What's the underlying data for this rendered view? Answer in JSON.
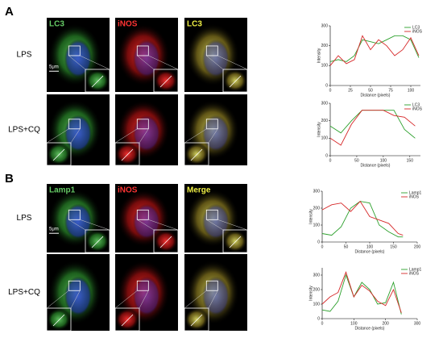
{
  "figure": {
    "panels": [
      {
        "letter": "A",
        "rows": [
          "LPS",
          "LPS+CQ"
        ],
        "channels": [
          "LC3",
          "iNOS",
          "LC3"
        ],
        "scale": "5μm"
      },
      {
        "letter": "B",
        "rows": [
          "LPS",
          "LPS+CQ"
        ],
        "channels": [
          "Lamp1",
          "iNOS",
          "Merge"
        ],
        "scale": "5μm"
      }
    ]
  },
  "chart_data": [
    {
      "type": "line",
      "x_label": "Distance (pixels)",
      "y_label": "Intensity",
      "x": [
        0,
        10,
        20,
        30,
        40,
        50,
        60,
        70,
        80,
        90,
        100,
        110
      ],
      "series": [
        {
          "name": "LC3",
          "color": "#2ca02c",
          "values": [
            120,
            130,
            120,
            150,
            230,
            220,
            210,
            230,
            250,
            250,
            230,
            140
          ]
        },
        {
          "name": "iNOS",
          "color": "#d62728",
          "values": [
            100,
            150,
            110,
            130,
            250,
            180,
            230,
            200,
            150,
            180,
            240,
            150
          ]
        }
      ],
      "xlim": [
        0,
        112
      ],
      "xticks": [
        0,
        25,
        50,
        75,
        100
      ],
      "ylim": [
        0,
        300
      ],
      "yticks": [
        0,
        100,
        200,
        300
      ]
    },
    {
      "type": "line",
      "x_label": "Distance (pixels)",
      "y_label": "Intensity",
      "x": [
        0,
        20,
        40,
        60,
        80,
        100,
        120,
        140,
        160
      ],
      "series": [
        {
          "name": "LC3",
          "color": "#2ca02c",
          "values": [
            170,
            130,
            200,
            260,
            260,
            260,
            260,
            150,
            100
          ]
        },
        {
          "name": "iNOS",
          "color": "#d62728",
          "values": [
            100,
            60,
            180,
            260,
            260,
            260,
            230,
            220,
            170
          ]
        }
      ],
      "xlim": [
        0,
        170
      ],
      "xticks": [
        0,
        50,
        100,
        150
      ],
      "ylim": [
        0,
        300
      ],
      "yticks": [
        0,
        100,
        200,
        300
      ]
    },
    {
      "type": "line",
      "x_label": "Distance (pixels)",
      "y_label": "Intensity",
      "x": [
        0,
        20,
        40,
        60,
        80,
        100,
        120,
        140,
        160,
        170
      ],
      "series": [
        {
          "name": "Lamp1",
          "color": "#2ca02c",
          "values": [
            50,
            40,
            90,
            200,
            240,
            230,
            100,
            60,
            30,
            30
          ]
        },
        {
          "name": "iNOS",
          "color": "#d62728",
          "values": [
            190,
            220,
            230,
            180,
            240,
            150,
            130,
            110,
            50,
            40
          ]
        }
      ],
      "xlim": [
        0,
        200
      ],
      "xticks": [
        0,
        50,
        100,
        150,
        200
      ],
      "ylim": [
        0,
        300
      ],
      "yticks": [
        0,
        100,
        200,
        300
      ]
    },
    {
      "type": "line",
      "x_label": "Distance (pixels)",
      "y_label": "Intensity",
      "x": [
        0,
        25,
        50,
        75,
        100,
        125,
        150,
        175,
        200,
        225,
        250
      ],
      "series": [
        {
          "name": "Lamp1",
          "color": "#2ca02c",
          "values": [
            60,
            50,
            120,
            300,
            150,
            250,
            200,
            100,
            110,
            250,
            30
          ]
        },
        {
          "name": "iNOS",
          "color": "#d62728",
          "values": [
            100,
            150,
            180,
            320,
            150,
            230,
            190,
            120,
            90,
            200,
            40
          ]
        }
      ],
      "xlim": [
        0,
        300
      ],
      "xticks": [
        0,
        100,
        200,
        300
      ],
      "ylim": [
        0,
        350
      ],
      "yticks": [
        0,
        100,
        200,
        300
      ]
    }
  ]
}
